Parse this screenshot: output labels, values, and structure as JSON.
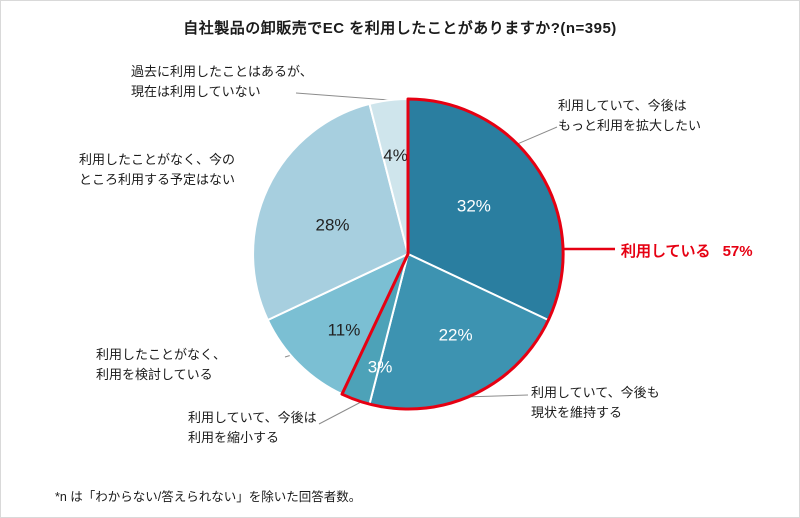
{
  "footnote": "*n は「わからない/答えられない」を除いた回答者数。",
  "chart_data": {
    "type": "pie",
    "title": "自社製品の卸販売でEC を利用したことがありますか?(n=395)",
    "unit": "%",
    "start_angle": "top",
    "direction": "clockwise",
    "legend_position": "callout-labels",
    "segments": [
      {
        "label": "利用していて、今後は\nもっと利用を拡大したい",
        "value": 32,
        "color": "#2a7ea0",
        "pct_color": "#ffffff"
      },
      {
        "label": "利用していて、今後も\n現状を維持する",
        "value": 22,
        "color": "#3d93b1",
        "pct_color": "#ffffff"
      },
      {
        "label": "利用していて、今後は\n利用を縮小する",
        "value": 3,
        "color": "#4da2b8",
        "pct_color": "#ffffff"
      },
      {
        "label": "利用したことがなく、\n利用を検討している",
        "value": 11,
        "color": "#7bbfd3",
        "pct_color": "#222222"
      },
      {
        "label": "利用したことがなく、今の\nところ利用する予定はない",
        "value": 28,
        "color": "#a7cfdf",
        "pct_color": "#222222"
      },
      {
        "label": "過去に利用したことはあるが、\n現在は利用していない",
        "value": 4,
        "color": "#cfe5ec",
        "pct_color": "#222222"
      }
    ],
    "highlight": {
      "label": "利用している",
      "value": 57,
      "value_label": "57%",
      "covers_segments": [
        0,
        1,
        2
      ],
      "color": "#e60012"
    }
  }
}
